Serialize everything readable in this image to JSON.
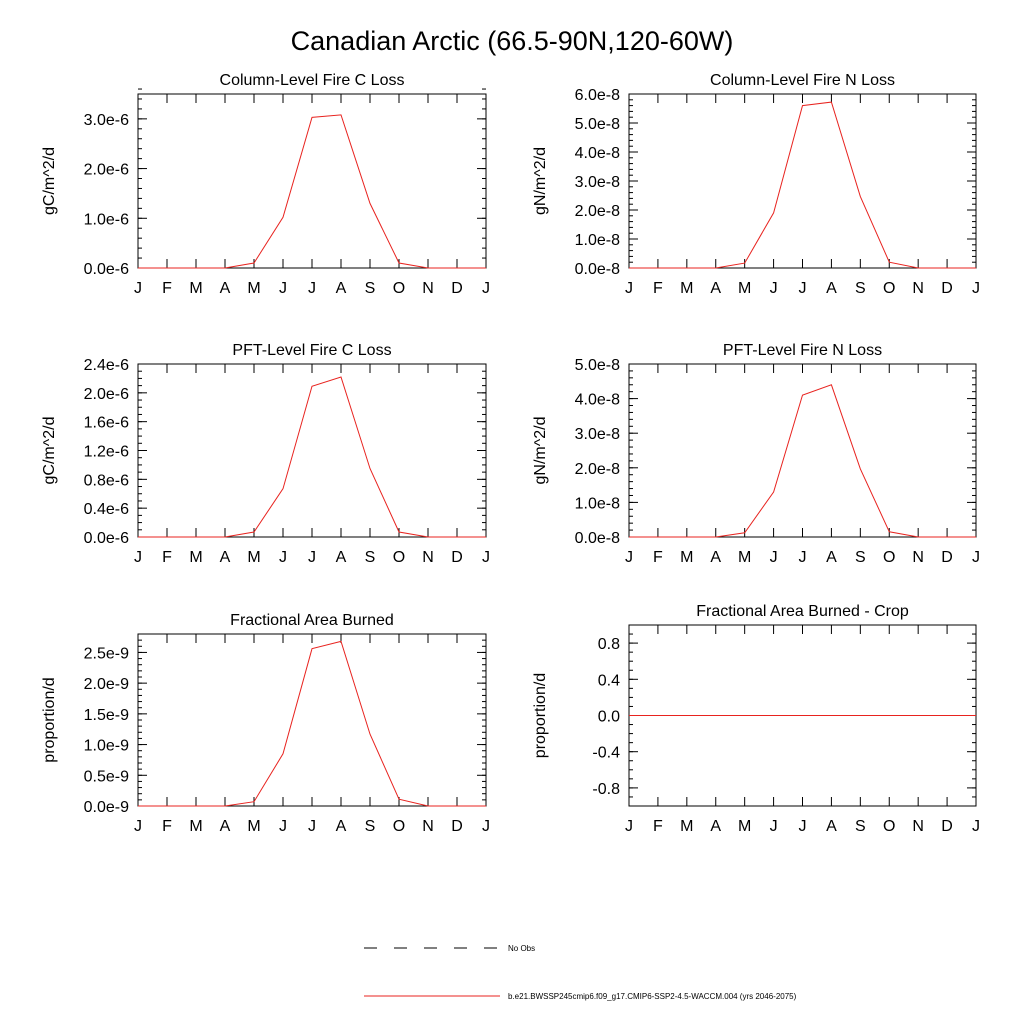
{
  "figure": {
    "title": "Canadian Arctic (66.5-90N,120-60W)"
  },
  "months": [
    "J",
    "F",
    "M",
    "A",
    "M",
    "J",
    "J",
    "A",
    "S",
    "O",
    "N",
    "D",
    "J"
  ],
  "colors": {
    "model_line": "#e8231f",
    "obs_line": "#000000",
    "axis": "#000000"
  },
  "legend": {
    "items": [
      {
        "label": "No Obs",
        "style": "dashed",
        "color": "#000000"
      },
      {
        "label": "b.e21.BWSSP245cmip6.f09_g17.CMIP6-SSP2-4.5-WACCM.004 (yrs 2046-2075)",
        "style": "solid",
        "color": "#e8231f"
      }
    ]
  },
  "chart_data": [
    {
      "type": "line",
      "title": "Column-Level Fire C Loss",
      "ylabel": "gC/m^2/d",
      "ylim": [
        0,
        3.5e-06
      ],
      "yticks": [
        0,
        1e-06,
        2e-06,
        3e-06
      ],
      "ytick_labels": [
        "0.0e-6",
        "1.0e-6",
        "2.0e-6",
        "3.0e-6"
      ],
      "yminor_step": 2e-07,
      "x": [
        0,
        1,
        2,
        3,
        4,
        5,
        6,
        7,
        8,
        9,
        10,
        11,
        12
      ],
      "series": [
        {
          "values": [
            0,
            0,
            0,
            0,
            1e-07,
            1.02e-06,
            3.03e-06,
            3.08e-06,
            1.3e-06,
            1e-07,
            0,
            0,
            0
          ]
        }
      ]
    },
    {
      "type": "line",
      "title": "Column-Level Fire N Loss",
      "ylabel": "gN/m^2/d",
      "ylim": [
        0,
        6e-08
      ],
      "yticks": [
        0,
        1e-08,
        2e-08,
        3e-08,
        4e-08,
        5e-08,
        6e-08
      ],
      "ytick_labels": [
        "0.0e-8",
        "1.0e-8",
        "2.0e-8",
        "3.0e-8",
        "4.0e-8",
        "5.0e-8",
        "6.0e-8"
      ],
      "yminor_step": 2e-09,
      "x": [
        0,
        1,
        2,
        3,
        4,
        5,
        6,
        7,
        8,
        9,
        10,
        11,
        12
      ],
      "series": [
        {
          "values": [
            0,
            0,
            0,
            0,
            1.7e-09,
            1.9e-08,
            5.6e-08,
            5.72e-08,
            2.47e-08,
            2e-09,
            0,
            0,
            0
          ]
        }
      ]
    },
    {
      "type": "line",
      "title": "PFT-Level Fire C Loss",
      "ylabel": "gC/m^2/d",
      "ylim": [
        0,
        2.4e-06
      ],
      "yticks": [
        0,
        4e-07,
        8e-07,
        1.2e-06,
        1.6e-06,
        2e-06,
        2.4e-06
      ],
      "ytick_labels": [
        "0.0e-6",
        "0.4e-6",
        "0.8e-6",
        "1.2e-6",
        "1.6e-6",
        "2.0e-6",
        "2.4e-6"
      ],
      "yminor_step": 1e-07,
      "x": [
        0,
        1,
        2,
        3,
        4,
        5,
        6,
        7,
        8,
        9,
        10,
        11,
        12
      ],
      "series": [
        {
          "values": [
            0,
            0,
            0,
            0,
            7e-08,
            6.7e-07,
            2.09e-06,
            2.22e-06,
            9.5e-07,
            7e-08,
            0,
            0,
            0
          ]
        }
      ]
    },
    {
      "type": "line",
      "title": "PFT-Level Fire N Loss",
      "ylabel": "gN/m^2/d",
      "ylim": [
        0,
        5e-08
      ],
      "yticks": [
        0,
        1e-08,
        2e-08,
        3e-08,
        4e-08,
        5e-08
      ],
      "ytick_labels": [
        "0.0e-8",
        "1.0e-8",
        "2.0e-8",
        "3.0e-8",
        "4.0e-8",
        "5.0e-8"
      ],
      "yminor_step": 2e-09,
      "x": [
        0,
        1,
        2,
        3,
        4,
        5,
        6,
        7,
        8,
        9,
        10,
        11,
        12
      ],
      "series": [
        {
          "values": [
            0,
            0,
            0,
            0,
            1.2e-09,
            1.3e-08,
            4.1e-08,
            4.4e-08,
            1.97e-08,
            1.5e-09,
            0,
            0,
            0
          ]
        }
      ]
    },
    {
      "type": "line",
      "title": "Fractional Area Burned",
      "ylabel": "proportion/d",
      "ylim": [
        0,
        2.8e-09
      ],
      "yticks": [
        0,
        5e-10,
        1e-09,
        1.5e-09,
        2e-09,
        2.5e-09
      ],
      "ytick_labels": [
        "0.0e-9",
        "0.5e-9",
        "1.0e-9",
        "1.5e-9",
        "2.0e-9",
        "2.5e-9"
      ],
      "yminor_step": 1e-10,
      "x": [
        0,
        1,
        2,
        3,
        4,
        5,
        6,
        7,
        8,
        9,
        10,
        11,
        12
      ],
      "series": [
        {
          "values": [
            0,
            0,
            0,
            0,
            7e-11,
            8.5e-10,
            2.56e-09,
            2.68e-09,
            1.17e-09,
            1.1e-10,
            0,
            0,
            0
          ]
        }
      ]
    },
    {
      "type": "line",
      "title": "Fractional Area Burned - Crop",
      "ylabel": "proportion/d",
      "ylim": [
        -1.0,
        1.0
      ],
      "yticks": [
        -0.8,
        -0.4,
        0.0,
        0.4,
        0.8
      ],
      "ytick_labels": [
        "-0.8",
        "-0.4",
        "0.0",
        "0.4",
        "0.8"
      ],
      "yminor_step": 0.1,
      "x": [
        0,
        1,
        2,
        3,
        4,
        5,
        6,
        7,
        8,
        9,
        10,
        11,
        12
      ],
      "series": [
        {
          "values": [
            0,
            0,
            0,
            0,
            0,
            0,
            0,
            0,
            0,
            0,
            0,
            0,
            0
          ]
        }
      ]
    }
  ]
}
